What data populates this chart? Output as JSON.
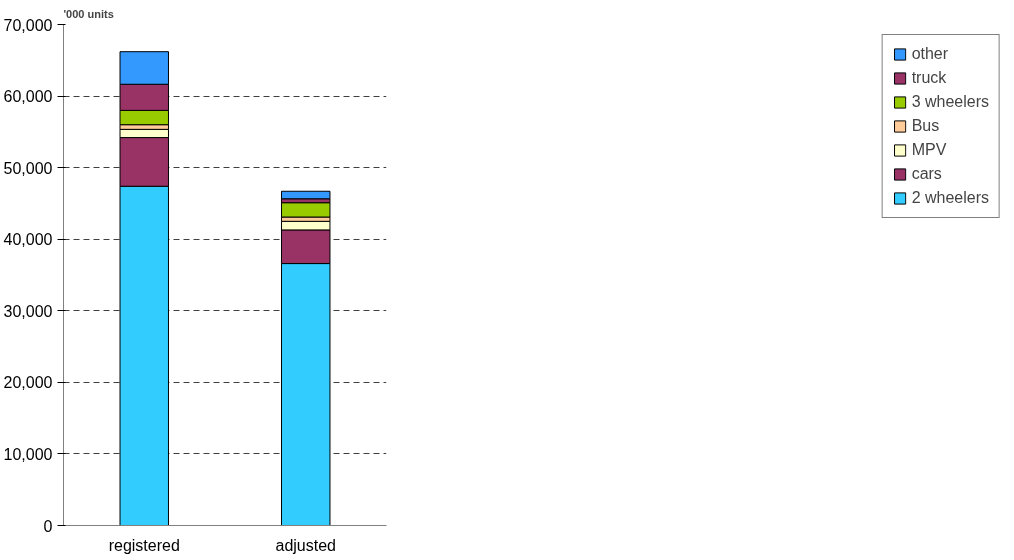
{
  "chart_data": {
    "type": "bar",
    "stacked": true,
    "ylabel": "'000 units",
    "categories": [
      "registered",
      "adjusted"
    ],
    "series": [
      {
        "name": "2 wheelers",
        "color": "#33ccff",
        "values": [
          47400,
          36600
        ]
      },
      {
        "name": "cars",
        "color": "#993366",
        "values": [
          6800,
          4700
        ]
      },
      {
        "name": "MPV",
        "color": "#ffffcc",
        "values": [
          1150,
          1200
        ]
      },
      {
        "name": "Bus",
        "color": "#ffcc99",
        "values": [
          650,
          600
        ]
      },
      {
        "name": "3 wheelers",
        "color": "#99cc00",
        "values": [
          2000,
          2000
        ]
      },
      {
        "name": "truck",
        "color": "#993366",
        "values": [
          3650,
          550
        ]
      },
      {
        "name": "other",
        "color": "#3399ff",
        "values": [
          4550,
          1050
        ]
      }
    ],
    "ylim": [
      0,
      70000
    ],
    "yticks": [
      {
        "value": 0,
        "label": "0"
      },
      {
        "value": 10000,
        "label": "10,000"
      },
      {
        "value": 20000,
        "label": "20,000"
      },
      {
        "value": 30000,
        "label": "30,000"
      },
      {
        "value": 40000,
        "label": "40,000"
      },
      {
        "value": 50000,
        "label": "50,000"
      },
      {
        "value": 60000,
        "label": "60,000"
      },
      {
        "value": 70000,
        "label": "70,000"
      }
    ],
    "grid": "y",
    "legend": "right"
  }
}
